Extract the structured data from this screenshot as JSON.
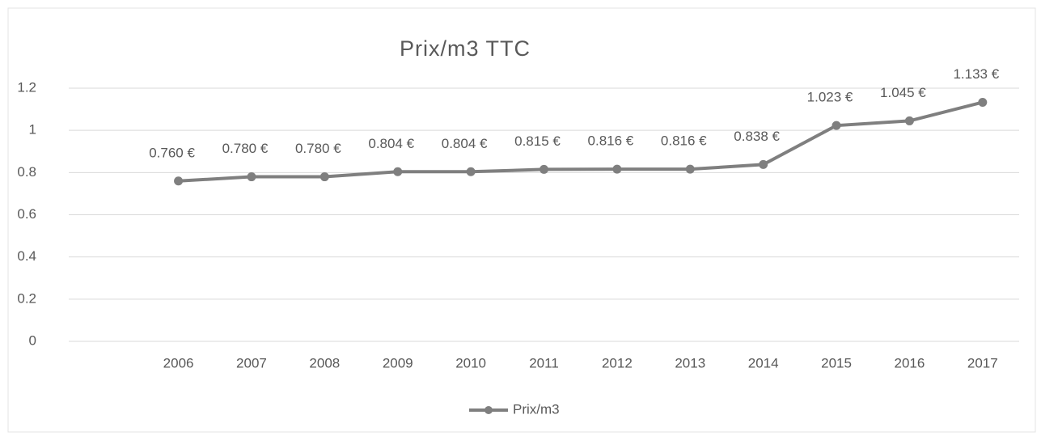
{
  "chart_data": {
    "type": "line",
    "title": "Prix/m3 TTC",
    "categories": [
      null,
      "2006",
      "2007",
      "2008",
      "2009",
      "2010",
      "2011",
      "2012",
      "2013",
      "2014",
      "2015",
      "2016",
      "2017"
    ],
    "series": [
      {
        "name": "Prix/m3",
        "color": "#7f7f7f",
        "values": [
          null,
          0.76,
          0.78,
          0.78,
          0.804,
          0.804,
          0.815,
          0.816,
          0.816,
          0.838,
          1.023,
          1.045,
          1.133
        ],
        "value_labels": [
          null,
          "0.760 €",
          "0.780 €",
          "0.780 €",
          "0.804 €",
          "0.804 €",
          "0.815 €",
          "0.816 €",
          "0.816 €",
          "0.838 €",
          "1.023 €",
          "1.045 €",
          "1.133 €"
        ]
      }
    ],
    "ylim": [
      0,
      1.2
    ],
    "yticks": [
      0,
      0.2,
      0.4,
      0.6,
      0.8,
      1,
      1.2
    ],
    "grid": true,
    "legend": "bottom"
  }
}
